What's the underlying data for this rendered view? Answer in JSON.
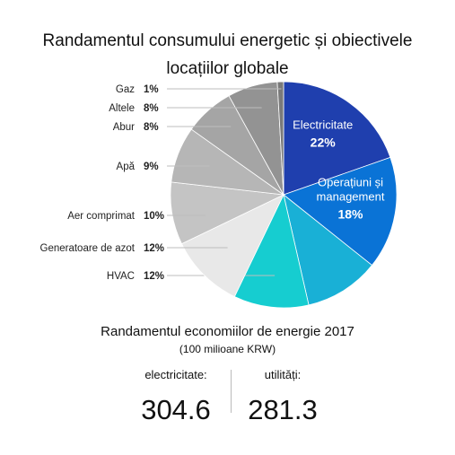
{
  "title_line1": "Randamentul consumului energetic și obiectivele",
  "title_line2": "locațiilor globale",
  "chart_data": {
    "type": "pie",
    "title": "Randamentul consumului energetic și obiectivele locațiilor globale",
    "slices": [
      {
        "label": "Electricitate",
        "value": 22,
        "display": "22%",
        "color": "#1f3fae",
        "inside": true
      },
      {
        "label": "Operațiuni și management",
        "value": 18,
        "display": "18%",
        "color": "#0a73d6",
        "inside": true
      },
      {
        "label": "",
        "value": 12,
        "display": "",
        "color": "#19b0d6",
        "inside": false,
        "unlabeled": true
      },
      {
        "label": "HVAC",
        "value": 12,
        "display": "12%",
        "color": "#16cdd0",
        "inside": false
      },
      {
        "label": "Generatoare de azot",
        "value": 12,
        "display": "12%",
        "color": "#e8e8e8",
        "inside": false
      },
      {
        "label": "Aer comprimat",
        "value": 10,
        "display": "10%",
        "color": "#c4c4c4",
        "inside": false
      },
      {
        "label": "Apă",
        "value": 9,
        "display": "9%",
        "color": "#b6b6b6",
        "inside": false
      },
      {
        "label": "Abur",
        "value": 8,
        "display": "8%",
        "color": "#a5a5a5",
        "inside": false
      },
      {
        "label": "Altele",
        "value": 8,
        "display": "8%",
        "color": "#939393",
        "inside": false
      },
      {
        "label": "Gaz",
        "value": 1,
        "display": "1%",
        "color": "#7a7a7a",
        "inside": false
      }
    ]
  },
  "savings": {
    "title": "Randamentul economiilor de energie 2017",
    "unit": "(100 milioane KRW)",
    "electricity_label": "electricitate:",
    "electricity_value": "304.6",
    "utilities_label": "utilități:",
    "utilities_value": "281.3"
  }
}
